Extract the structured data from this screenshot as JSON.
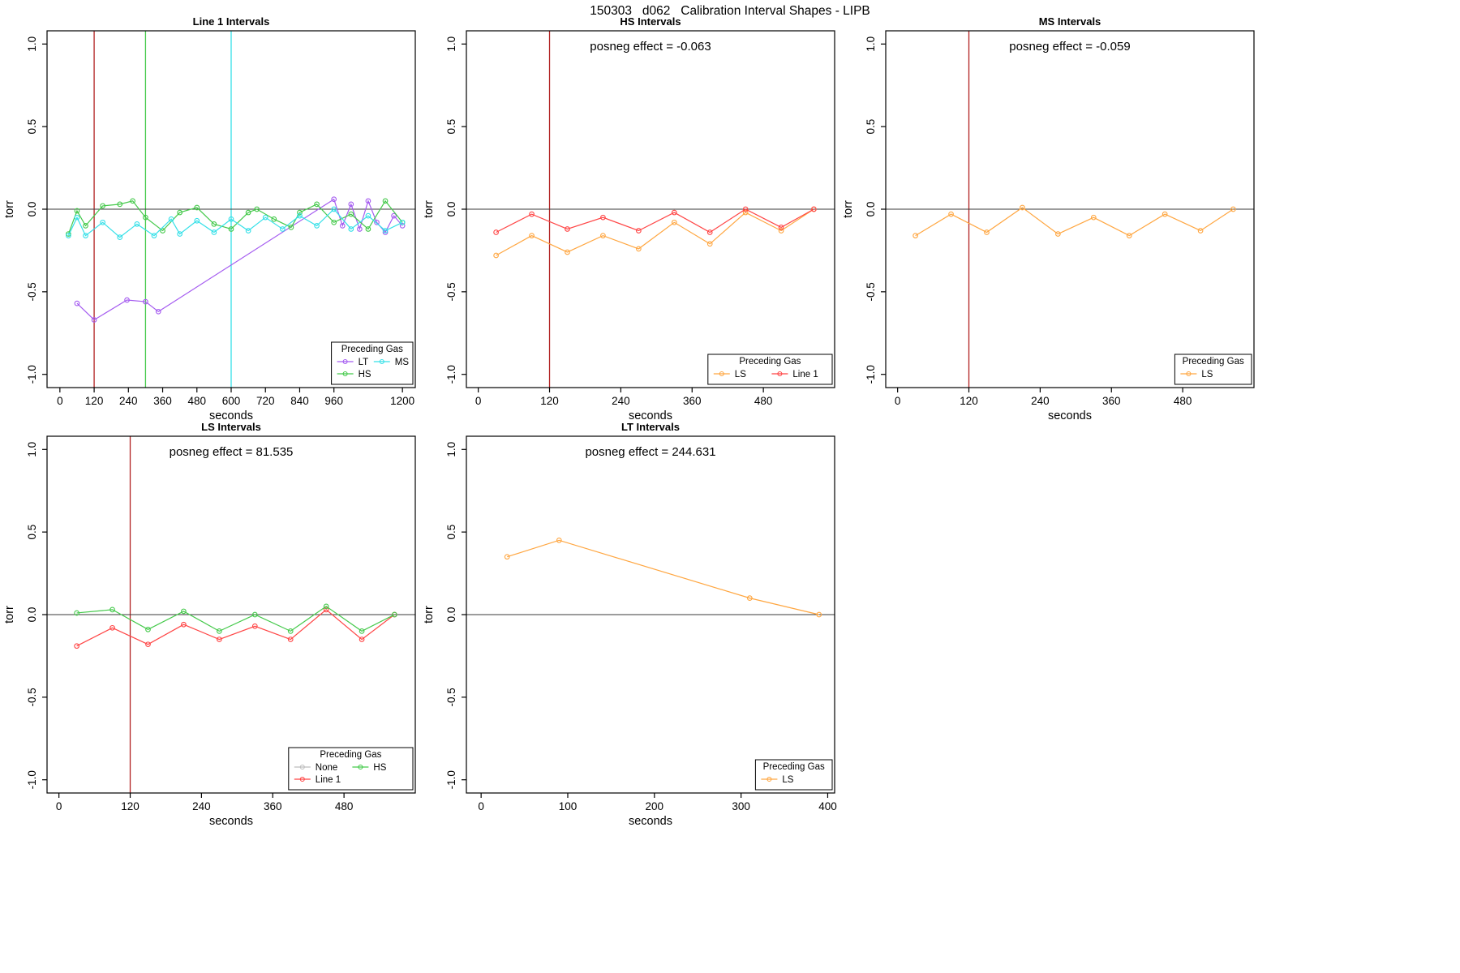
{
  "header": {
    "title": "150303   d062   Calibration Interval Shapes - LIPB"
  },
  "colors": {
    "LT": "#A55CF0",
    "HS": "#44C94A",
    "MS": "#35E0E8",
    "LS": "#FFA640",
    "Line 1": "#FF4545",
    "None": "#BDBDBD",
    "vline_red": "#B22222",
    "zero_line": "#3a3a3a",
    "axis": "#000000"
  },
  "chart_data": [
    {
      "type": "line",
      "title": "Line 1 Intervals",
      "xlabel": "seconds",
      "ylabel": "torr",
      "xlim": [
        -45,
        1245
      ],
      "ylim": [
        -1.08,
        1.08
      ],
      "xticks": [
        0,
        120,
        240,
        360,
        480,
        600,
        720,
        840,
        960,
        1200
      ],
      "yticks": [
        -1.0,
        -0.5,
        0.0,
        0.5,
        1.0
      ],
      "annotation": "",
      "vlines": [
        {
          "x": 120,
          "color": "#B22222"
        },
        {
          "x": 300,
          "color": "#44C94A"
        },
        {
          "x": 600,
          "color": "#35E0E8"
        }
      ],
      "legend": {
        "title": "Preceding Gas",
        "ncol": 2,
        "entries": [
          "LT",
          "HS",
          "MS"
        ]
      },
      "series": [
        {
          "name": "LT",
          "x": [
            60,
            120,
            235,
            300,
            345,
            960,
            990,
            1020,
            1050,
            1080,
            1110,
            1140,
            1170,
            1200
          ],
          "y": [
            -0.57,
            -0.67,
            -0.55,
            -0.56,
            -0.62,
            0.06,
            -0.1,
            0.03,
            -0.12,
            0.05,
            -0.08,
            -0.14,
            -0.04,
            -0.1
          ]
        },
        {
          "name": "HS",
          "x": [
            30,
            60,
            90,
            150,
            210,
            255,
            300,
            360,
            420,
            480,
            540,
            600,
            660,
            690,
            750,
            810,
            840,
            900,
            960,
            1020,
            1080,
            1140,
            1200
          ],
          "y": [
            -0.15,
            -0.01,
            -0.1,
            0.02,
            0.03,
            0.05,
            -0.05,
            -0.13,
            -0.02,
            0.01,
            -0.09,
            -0.12,
            -0.02,
            0.0,
            -0.06,
            -0.11,
            -0.02,
            0.03,
            -0.08,
            -0.03,
            -0.12,
            0.05,
            -0.08
          ]
        },
        {
          "name": "MS",
          "x": [
            30,
            60,
            90,
            150,
            210,
            270,
            330,
            390,
            420,
            480,
            540,
            600,
            660,
            720,
            780,
            840,
            900,
            960,
            1020,
            1080,
            1140,
            1200
          ],
          "y": [
            -0.16,
            -0.05,
            -0.16,
            -0.08,
            -0.17,
            -0.09,
            -0.16,
            -0.06,
            -0.15,
            -0.07,
            -0.14,
            -0.06,
            -0.13,
            -0.05,
            -0.12,
            -0.04,
            -0.1,
            0.0,
            -0.12,
            -0.04,
            -0.13,
            -0.08
          ]
        }
      ]
    },
    {
      "type": "line",
      "title": "HS Intervals",
      "xlabel": "seconds",
      "ylabel": "torr",
      "xlim": [
        -20,
        600
      ],
      "ylim": [
        -1.08,
        1.08
      ],
      "xticks": [
        0,
        120,
        240,
        360,
        480
      ],
      "yticks": [
        -1.0,
        -0.5,
        0.0,
        0.5,
        1.0
      ],
      "annotation": "posneg effect = -0.063",
      "vlines": [
        {
          "x": 120,
          "color": "#B22222"
        }
      ],
      "legend": {
        "title": "Preceding Gas",
        "ncol": 2,
        "entries": [
          "LS",
          "Line 1"
        ]
      },
      "series": [
        {
          "name": "LS",
          "x": [
            30,
            90,
            150,
            210,
            270,
            330,
            390,
            450,
            510,
            565
          ],
          "y": [
            -0.28,
            -0.16,
            -0.26,
            -0.16,
            -0.24,
            -0.08,
            -0.21,
            -0.02,
            -0.13,
            0.0
          ]
        },
        {
          "name": "Line 1",
          "x": [
            30,
            90,
            150,
            210,
            270,
            330,
            390,
            450,
            510,
            565
          ],
          "y": [
            -0.14,
            -0.03,
            -0.12,
            -0.05,
            -0.13,
            -0.02,
            -0.14,
            0.0,
            -0.11,
            0.0
          ]
        }
      ]
    },
    {
      "type": "line",
      "title": "MS Intervals",
      "xlabel": "seconds",
      "ylabel": "torr",
      "xlim": [
        -20,
        600
      ],
      "ylim": [
        -1.08,
        1.08
      ],
      "xticks": [
        0,
        120,
        240,
        360,
        480
      ],
      "yticks": [
        -1.0,
        -0.5,
        0.0,
        0.5,
        1.0
      ],
      "annotation": "posneg effect = -0.059",
      "vlines": [
        {
          "x": 120,
          "color": "#B22222"
        }
      ],
      "legend": {
        "title": "Preceding Gas",
        "ncol": 1,
        "entries": [
          "LS"
        ]
      },
      "series": [
        {
          "name": "LS",
          "x": [
            30,
            90,
            150,
            210,
            270,
            330,
            390,
            450,
            510,
            565
          ],
          "y": [
            -0.16,
            -0.03,
            -0.14,
            0.01,
            -0.15,
            -0.05,
            -0.16,
            -0.03,
            -0.13,
            0.0
          ]
        }
      ]
    },
    {
      "type": "line",
      "title": "LS Intervals",
      "xlabel": "seconds",
      "ylabel": "torr",
      "xlim": [
        -20,
        600
      ],
      "ylim": [
        -1.08,
        1.08
      ],
      "xticks": [
        0,
        120,
        240,
        360,
        480
      ],
      "yticks": [
        -1.0,
        -0.5,
        0.0,
        0.5,
        1.0
      ],
      "annotation": "posneg effect = 81.535",
      "vlines": [
        {
          "x": 120,
          "color": "#B22222"
        }
      ],
      "legend": {
        "title": "Preceding Gas",
        "ncol": 2,
        "entries": [
          "None",
          "Line 1",
          "HS"
        ]
      },
      "series": [
        {
          "name": "None",
          "x": [],
          "y": []
        },
        {
          "name": "Line 1",
          "x": [
            30,
            90,
            150,
            210,
            270,
            330,
            390,
            450,
            510,
            565
          ],
          "y": [
            -0.19,
            -0.08,
            -0.18,
            -0.06,
            -0.15,
            -0.07,
            -0.15,
            0.03,
            -0.15,
            0.0
          ]
        },
        {
          "name": "HS",
          "x": [
            30,
            90,
            150,
            210,
            270,
            330,
            390,
            450,
            510,
            565
          ],
          "y": [
            0.01,
            0.03,
            -0.09,
            0.02,
            -0.1,
            0.0,
            -0.1,
            0.05,
            -0.1,
            0.0
          ]
        }
      ]
    },
    {
      "type": "line",
      "title": "LT Intervals",
      "xlabel": "seconds",
      "ylabel": "torr",
      "xlim": [
        -17,
        408
      ],
      "ylim": [
        -1.08,
        1.08
      ],
      "xticks": [
        0,
        100,
        200,
        300,
        400
      ],
      "yticks": [
        -1.0,
        -0.5,
        0.0,
        0.5,
        1.0
      ],
      "annotation": "posneg effect = 244.631",
      "vlines": [],
      "legend": {
        "title": "Preceding Gas",
        "ncol": 1,
        "entries": [
          "LS"
        ]
      },
      "series": [
        {
          "name": "LS",
          "x": [
            30,
            90,
            310,
            390
          ],
          "y": [
            0.35,
            0.45,
            0.1,
            0.0
          ]
        }
      ]
    }
  ]
}
